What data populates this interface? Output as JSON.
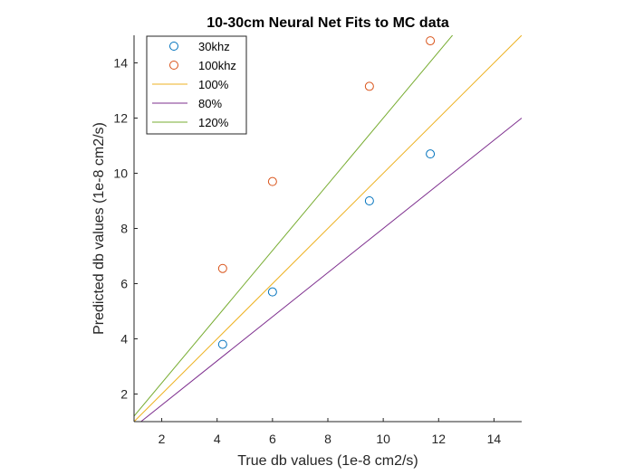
{
  "chart_data": {
    "type": "scatter",
    "title": "10-30cm Neural Net Fits to MC data",
    "xlabel": "True db values (1e-8 cm2/s)",
    "ylabel": "Predicted db values (1e-8 cm2/s)",
    "xlim": [
      1,
      15
    ],
    "ylim": [
      1,
      15
    ],
    "xticks": [
      2,
      4,
      6,
      8,
      10,
      12,
      14
    ],
    "yticks": [
      2,
      4,
      6,
      8,
      10,
      12,
      14
    ],
    "grid": false,
    "legend_position": "top-left",
    "series": [
      {
        "name": "30khz",
        "kind": "scatter",
        "marker": "open-circle",
        "color": "#0072BD",
        "x": [
          4.2,
          6.0,
          9.5,
          11.7
        ],
        "y": [
          3.8,
          5.7,
          9.0,
          10.7
        ]
      },
      {
        "name": "100khz",
        "kind": "scatter",
        "marker": "open-circle",
        "color": "#D95319",
        "x": [
          4.2,
          6.0,
          9.5,
          11.7
        ],
        "y": [
          6.55,
          9.7,
          13.15,
          14.8
        ]
      },
      {
        "name": "100%",
        "kind": "line",
        "color": "#EDB120",
        "slope": 1.0
      },
      {
        "name": "80%",
        "kind": "line",
        "color": "#7E2F8E",
        "slope": 0.8
      },
      {
        "name": "120%",
        "kind": "line",
        "color": "#77AC30",
        "slope": 1.2
      }
    ]
  }
}
